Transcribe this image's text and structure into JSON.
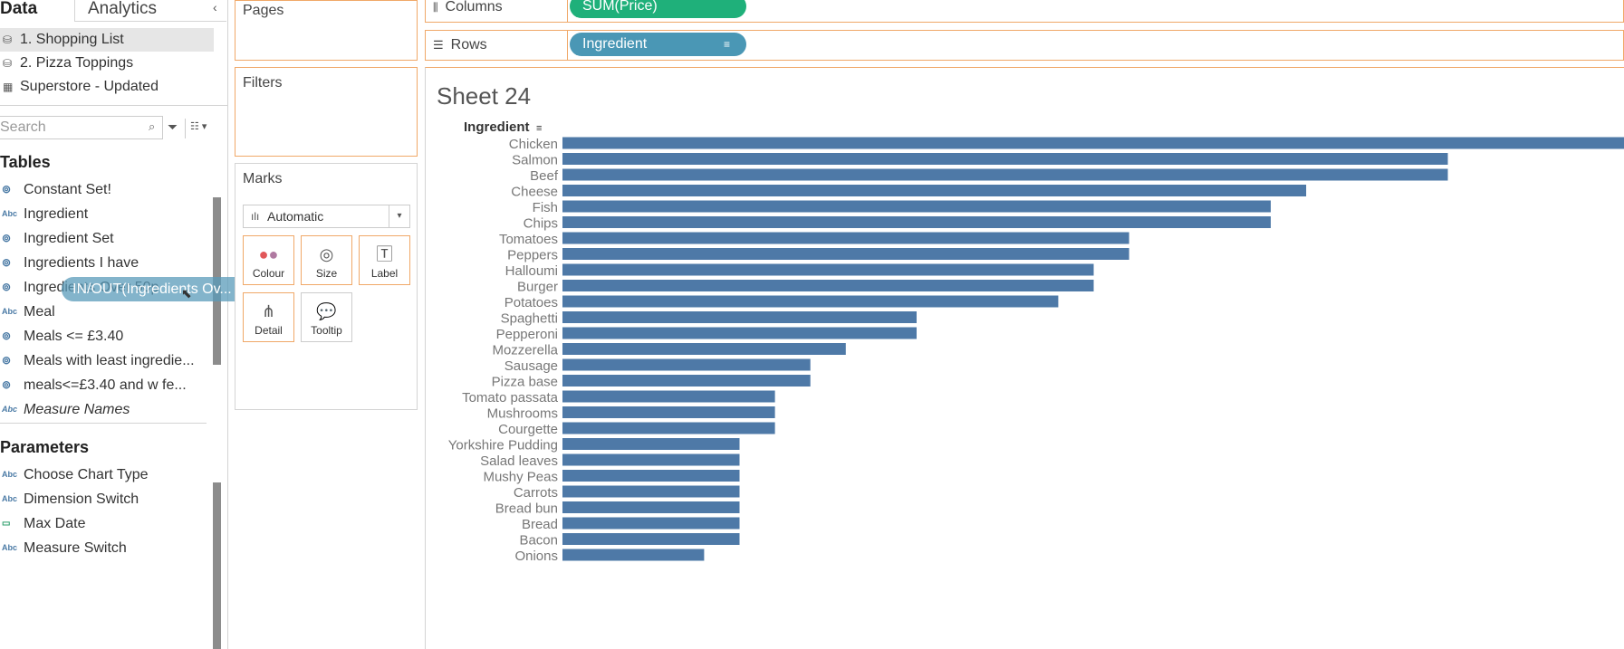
{
  "data_pane": {
    "tab_data": "Data",
    "tab_analytics": "Analytics",
    "collapse_glyph": "‹",
    "datasources": [
      {
        "label": "1. Shopping List",
        "icon": "database-icon",
        "selected": true
      },
      {
        "label": "2. Pizza Toppings",
        "icon": "database-icon",
        "selected": false
      },
      {
        "label": "Superstore - Updated",
        "icon": "extract-icon",
        "selected": false
      }
    ],
    "search_placeholder": "Search",
    "tables_header": "Tables",
    "fields": [
      {
        "label": "Constant Set!",
        "type": "set"
      },
      {
        "label": "Ingredient",
        "type": "abc"
      },
      {
        "label": "Ingredient Set",
        "type": "set"
      },
      {
        "label": "Ingredients I have",
        "type": "set"
      },
      {
        "label": "Ingredients Over 50p",
        "type": "set"
      },
      {
        "label": "Meal",
        "type": "abc"
      },
      {
        "label": "Meals <= £3.40",
        "type": "set"
      },
      {
        "label": "Meals with least ingredie...",
        "type": "set"
      },
      {
        "label": "meals<=£3.40 and w fe...",
        "type": "set"
      },
      {
        "label": "Measure Names",
        "type": "abc",
        "italic": true
      }
    ],
    "parameters_header": "Parameters",
    "parameters": [
      {
        "label": "Choose Chart Type",
        "type": "abc"
      },
      {
        "label": "Dimension Switch",
        "type": "abc"
      },
      {
        "label": "Max Date",
        "type": "date"
      },
      {
        "label": "Measure Switch",
        "type": "abc"
      }
    ],
    "drag_pill": "IN/OUT(Ingredients Ov..."
  },
  "cards": {
    "pages": "Pages",
    "filters": "Filters",
    "marks": "Marks",
    "mark_type": "Automatic",
    "mark_buttons": [
      "Colour",
      "Size",
      "Label",
      "Detail",
      "Tooltip"
    ]
  },
  "shelves": {
    "columns_label": "Columns",
    "columns_pill": "SUM(Price)",
    "rows_label": "Rows",
    "rows_pill": "Ingredient"
  },
  "colors": {
    "measure_pill": "#1fb07a",
    "dimension_pill": "#4a97b5",
    "bar": "#4e79a7",
    "shelf_border": "#f0a868"
  },
  "sheet_title": "Sheet 24",
  "chart_data": {
    "type": "bar",
    "orientation": "horizontal",
    "title": "Sheet 24",
    "ylabel": "Ingredient",
    "xlabel": "",
    "categories": [
      "Chicken",
      "Salmon",
      "Beef",
      "Cheese",
      "Fish",
      "Chips",
      "Tomatoes",
      "Peppers",
      "Halloumi",
      "Burger",
      "Potatoes",
      "Spaghetti",
      "Pepperoni",
      "Mozzerella",
      "Sausage",
      "Pizza base",
      "Tomato passata",
      "Mushrooms",
      "Courgette",
      "Yorkshire Pudding",
      "Salad leaves",
      "Mushy Peas",
      "Carrots",
      "Bread bun",
      "Bread",
      "Bacon",
      "Onions"
    ],
    "values": [
      3.0,
      2.5,
      2.5,
      2.1,
      2.0,
      2.0,
      1.6,
      1.6,
      1.5,
      1.5,
      1.4,
      1.0,
      1.0,
      0.8,
      0.7,
      0.7,
      0.6,
      0.6,
      0.6,
      0.5,
      0.5,
      0.5,
      0.5,
      0.5,
      0.5,
      0.5,
      0.4
    ],
    "xlim": [
      0,
      3.0
    ],
    "grid": false,
    "legend": "none"
  }
}
